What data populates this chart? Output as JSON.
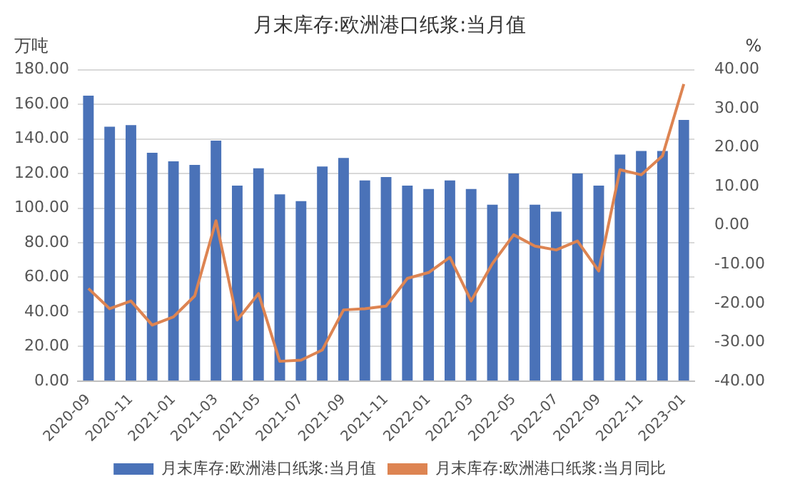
{
  "chart_data": {
    "type": "bar",
    "title": "月末库存:欧洲港口纸浆:当月值",
    "ylabel": "万吨",
    "y2label": "%",
    "categories": [
      "2020-09",
      null,
      "2020-11",
      null,
      "2021-01",
      null,
      "2021-03",
      null,
      "2021-05",
      null,
      "2021-07",
      null,
      "2021-09",
      null,
      "2021-11",
      null,
      "2022-01",
      null,
      "2022-03",
      null,
      "2022-05",
      null,
      "2022-07",
      null,
      "2022-09",
      null,
      "2022-11",
      null,
      "2023-01"
    ],
    "series": [
      {
        "name": "月末库存:欧洲港口纸浆:当月值",
        "color": "#4a72b8",
        "values": [
          165,
          147,
          148,
          132,
          127,
          125,
          139,
          113,
          123,
          108,
          104,
          124,
          129,
          116,
          118,
          113,
          111,
          116,
          111,
          102,
          120,
          102,
          98,
          120,
          113,
          131,
          133,
          133,
          151
        ]
      },
      {
        "name": "月末库存:欧洲港口纸浆:当月同比",
        "type": "line",
        "axis": "y2",
        "color": "#dd8452",
        "values": [
          -16.2,
          -21.4,
          -19.4,
          -25.6,
          -23.5,
          -18.1,
          1.2,
          -24.3,
          -17.5,
          -34.9,
          -34.6,
          -32.0,
          -21.7,
          -21.4,
          -20.7,
          -13.6,
          -12.1,
          -8.2,
          -19.4,
          -9.8,
          -2.4,
          -5.3,
          -6.3,
          -4.0,
          -11.7,
          14.3,
          13.0,
          17.9,
          36.3
        ]
      }
    ],
    "ylim": [
      0,
      180
    ],
    "yticks": [
      {
        "value": 0,
        "label": "0.00"
      },
      {
        "value": 20,
        "label": "20.00"
      },
      {
        "value": 40,
        "label": "40.00"
      },
      {
        "value": 60,
        "label": "60.00"
      },
      {
        "value": 80,
        "label": "80.00"
      },
      {
        "value": 100,
        "label": "100.00"
      },
      {
        "value": 120,
        "label": "120.00"
      },
      {
        "value": 140,
        "label": "140.00"
      },
      {
        "value": 160,
        "label": "160.00"
      },
      {
        "value": 180,
        "label": "180.00"
      }
    ],
    "y2lim": [
      -40,
      40
    ],
    "y2ticks": [
      {
        "value": -40,
        "label": "-40.00"
      },
      {
        "value": -30,
        "label": "-30.00"
      },
      {
        "value": -20,
        "label": "-20.00"
      },
      {
        "value": -10,
        "label": "-10.00"
      },
      {
        "value": 0,
        "label": "0.00"
      },
      {
        "value": 10,
        "label": "10.00"
      },
      {
        "value": 20,
        "label": "20.00"
      },
      {
        "value": 30,
        "label": "30.00"
      },
      {
        "value": 40,
        "label": "40.00"
      }
    ],
    "grid": "y",
    "legend": "bottom",
    "marker": "none",
    "line_style": "solid"
  }
}
